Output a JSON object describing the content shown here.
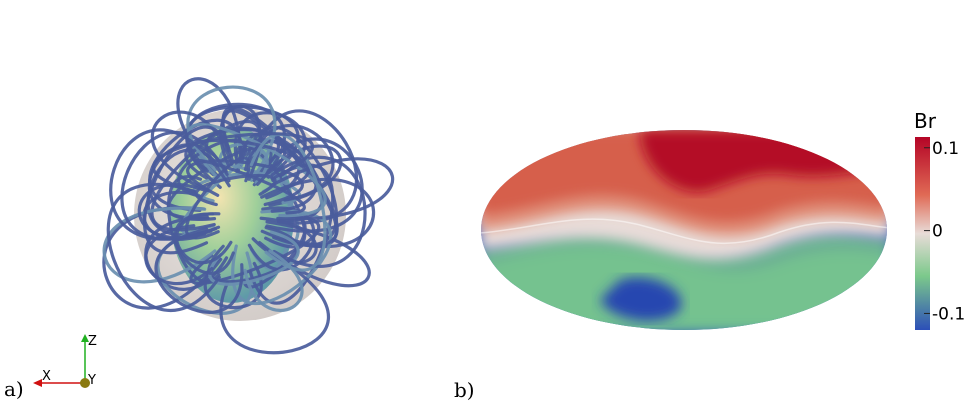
{
  "panel_a": {
    "label": "a)",
    "axes": {
      "x": "X",
      "y": "Y",
      "z": "Z"
    }
  },
  "panel_b": {
    "label": "b)",
    "colorbar": {
      "title": "Br",
      "lim": [
        -0.12,
        0.113
      ],
      "ticks": [
        -0.1,
        0,
        0.1
      ]
    }
  }
}
